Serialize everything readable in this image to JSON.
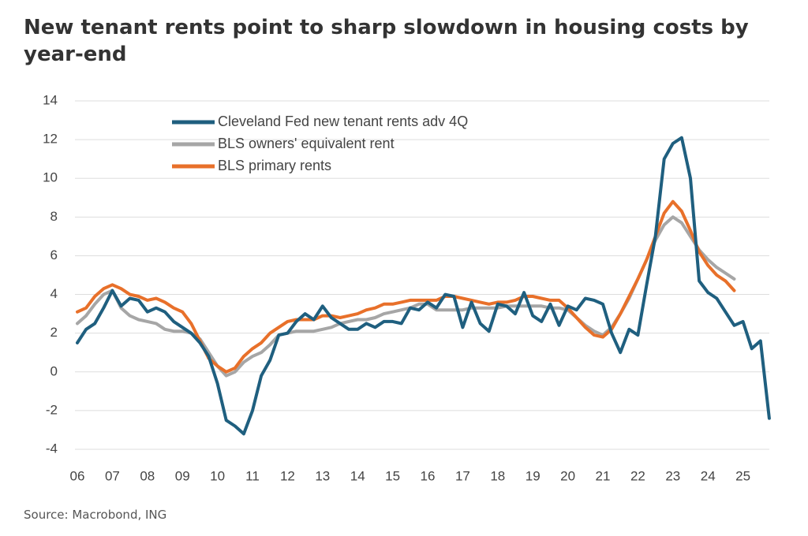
{
  "chart_data": {
    "type": "line",
    "title": "New tenant rents point to sharp slowdown in housing costs by year-end",
    "source": "Source: Macrobond, ING",
    "categories": [
      "06",
      null,
      null,
      null,
      "07",
      null,
      null,
      null,
      "08",
      null,
      null,
      null,
      "09",
      null,
      null,
      null,
      "10",
      null,
      null,
      null,
      "11",
      null,
      null,
      null,
      "12",
      null,
      null,
      null,
      "13",
      null,
      null,
      null,
      "14",
      null,
      null,
      null,
      "15",
      null,
      null,
      null,
      "16",
      null,
      null,
      null,
      "17",
      null,
      null,
      null,
      "18",
      null,
      null,
      null,
      "19",
      null,
      null,
      null,
      "20",
      null,
      null,
      null,
      "21",
      null,
      null,
      null,
      "22",
      null,
      null,
      null,
      "23",
      null,
      null,
      null,
      "24",
      null,
      null,
      null,
      "25",
      null,
      null,
      null
    ],
    "series": [
      {
        "name": "Cleveland Fed new tenant rents adv 4Q",
        "color": "#1f5f7f",
        "values": [
          1.5,
          2.2,
          2.5,
          3.3,
          4.2,
          3.4,
          3.8,
          3.7,
          3.1,
          3.3,
          3.1,
          2.6,
          2.3,
          2.0,
          1.5,
          0.8,
          -0.6,
          -2.5,
          -2.8,
          -3.2,
          -2.0,
          -0.2,
          0.6,
          1.9,
          2.0,
          2.6,
          3.0,
          2.7,
          3.4,
          2.8,
          2.5,
          2.2,
          2.2,
          2.5,
          2.3,
          2.6,
          2.6,
          2.5,
          3.3,
          3.2,
          3.6,
          3.3,
          4.0,
          3.9,
          2.3,
          3.6,
          2.5,
          2.1,
          3.5,
          3.4,
          3.0,
          4.1,
          2.9,
          2.6,
          3.5,
          2.4,
          3.4,
          3.2,
          3.8,
          3.7,
          3.5,
          2.0,
          1.0,
          2.2,
          1.9,
          4.5,
          7.0,
          11.0,
          11.8,
          12.1,
          10.0,
          4.7,
          4.1,
          3.8,
          3.1,
          2.4,
          2.6,
          1.2,
          1.6,
          -2.4
        ]
      },
      {
        "name": "BLS owners' equivalent rent",
        "color": "#a6a6a6",
        "values": [
          2.5,
          2.9,
          3.5,
          4.0,
          4.2,
          3.3,
          2.9,
          2.7,
          2.6,
          2.5,
          2.2,
          2.1,
          2.1,
          2.0,
          1.7,
          1.0,
          0.3,
          -0.2,
          0.0,
          0.5,
          0.8,
          1.0,
          1.4,
          1.9,
          2.0,
          2.1,
          2.1,
          2.1,
          2.2,
          2.3,
          2.5,
          2.6,
          2.7,
          2.7,
          2.8,
          3.0,
          3.1,
          3.2,
          3.3,
          3.5,
          3.5,
          3.2,
          3.2,
          3.2,
          3.2,
          3.3,
          3.3,
          3.3,
          3.3,
          3.4,
          3.4,
          3.4,
          3.4,
          3.4,
          3.3,
          3.3,
          3.2,
          2.8,
          2.4,
          2.1,
          1.9,
          2.3,
          3.0,
          3.8,
          4.8,
          5.8,
          6.8,
          7.6,
          8.0,
          7.7,
          7.0,
          6.3,
          5.8,
          5.4,
          5.1,
          4.8,
          null,
          null,
          null,
          null
        ]
      },
      {
        "name": "BLS primary rents",
        "color": "#e8702a",
        "values": [
          3.1,
          3.3,
          3.9,
          4.3,
          4.5,
          4.3,
          4.0,
          3.9,
          3.7,
          3.8,
          3.6,
          3.3,
          3.1,
          2.5,
          1.6,
          0.7,
          0.3,
          0.0,
          0.2,
          0.8,
          1.2,
          1.5,
          2.0,
          2.3,
          2.6,
          2.7,
          2.7,
          2.7,
          2.9,
          2.9,
          2.8,
          2.9,
          3.0,
          3.2,
          3.3,
          3.5,
          3.5,
          3.6,
          3.7,
          3.7,
          3.7,
          3.7,
          3.9,
          3.9,
          3.8,
          3.7,
          3.6,
          3.5,
          3.6,
          3.6,
          3.7,
          3.9,
          3.9,
          3.8,
          3.7,
          3.7,
          3.3,
          2.8,
          2.3,
          1.9,
          1.8,
          2.2,
          3.0,
          3.9,
          4.8,
          5.8,
          7.0,
          8.2,
          8.8,
          8.3,
          7.3,
          6.2,
          5.5,
          5.0,
          4.7,
          4.2,
          null,
          null,
          null,
          null
        ]
      }
    ],
    "ylim": [
      -4,
      14
    ],
    "yticks": [
      -4,
      -2,
      0,
      2,
      4,
      6,
      8,
      10,
      12,
      14
    ],
    "grid": true,
    "legend": "upper left"
  }
}
